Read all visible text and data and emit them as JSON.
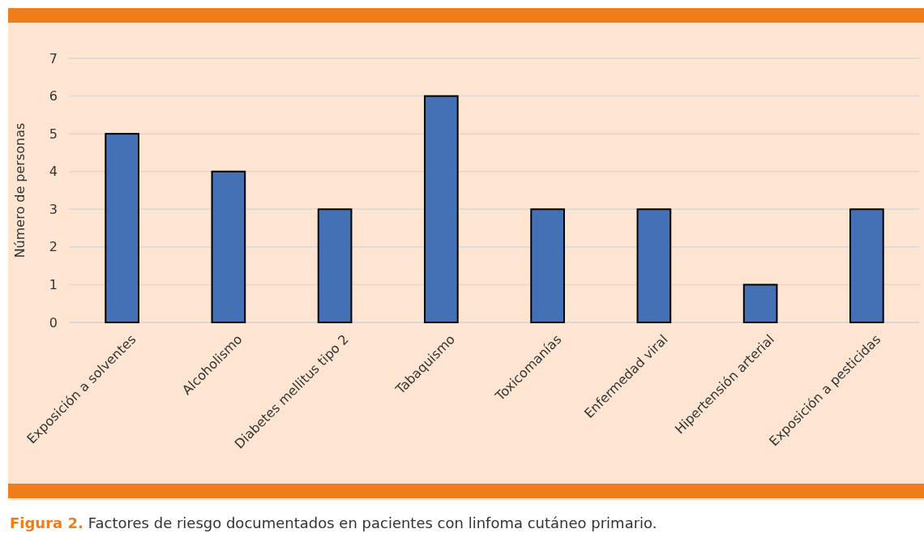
{
  "chart_data": {
    "type": "bar",
    "title": "Figura 2.",
    "subtitle": "Factores de riesgo documentados en pacientes con linfoma cutáneo primario.",
    "ylabel": "Número de personas",
    "categories": [
      "Exposición a solventes",
      "Alcoholismo",
      "Diabetes mellitus tipo 2",
      "Tabaquismo",
      "Toxicomanías",
      "Enfermedad viral",
      "Hipertensión arterial",
      "Exposición a pesticidas"
    ],
    "values": [
      5,
      4,
      3,
      6,
      3,
      3,
      1,
      3
    ],
    "color": "#4470b5",
    "ylim": [
      0,
      7
    ],
    "yticks": [
      0,
      1,
      2,
      3,
      4,
      5,
      6,
      7
    ],
    "grid": "y"
  }
}
